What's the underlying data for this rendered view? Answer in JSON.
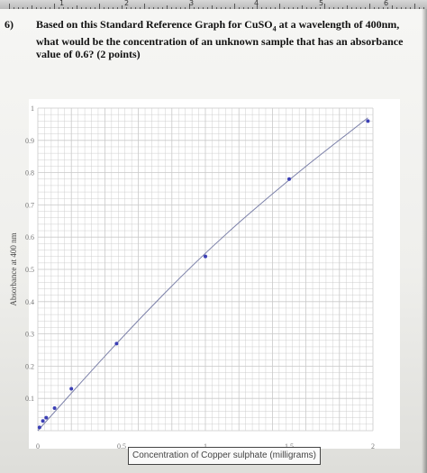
{
  "question": {
    "number": "6)",
    "text_before": "Based on this Standard Reference Graph for CuSO",
    "text_sub": "4",
    "text_after": " at a wavelength of 400nm, what would be the concentration of an unknown sample that has an absorbance value of 0.6? (2 points)"
  },
  "ruler": {
    "marks": [
      "1",
      "2",
      "3",
      "4",
      "5",
      "6"
    ]
  },
  "colors": {
    "line": "#7a7fa8",
    "point": "#3b3fb5",
    "grid": "#c9c9c9"
  },
  "chart_data": {
    "type": "scatter",
    "title": "",
    "xlabel": "Concentration of Copper sulphate (milligrams)",
    "ylabel": "Absorbance at 400 nm",
    "xlim": [
      0,
      2
    ],
    "ylim": [
      0,
      1
    ],
    "grid": true,
    "x_ticks": [
      "0",
      "0.5",
      "1",
      "1.5",
      "2"
    ],
    "y_ticks": [
      "0.1",
      "0.2",
      "0.3",
      "0.4",
      "0.5",
      "0.6",
      "0.7",
      "0.8",
      "0.9",
      "1"
    ],
    "series": [
      {
        "points": [
          [
            0.01,
            0.01
          ],
          [
            0.03,
            0.03
          ],
          [
            0.05,
            0.04
          ],
          [
            0.1,
            0.07
          ],
          [
            0.2,
            0.13
          ],
          [
            0.47,
            0.27
          ],
          [
            1.0,
            0.54
          ],
          [
            1.5,
            0.78
          ],
          [
            1.97,
            0.96
          ]
        ]
      }
    ],
    "trend_line": [
      [
        0,
        0
      ],
      [
        0.5,
        0.29
      ],
      [
        1.0,
        0.555
      ],
      [
        1.5,
        0.78
      ],
      [
        1.97,
        0.97
      ]
    ]
  }
}
